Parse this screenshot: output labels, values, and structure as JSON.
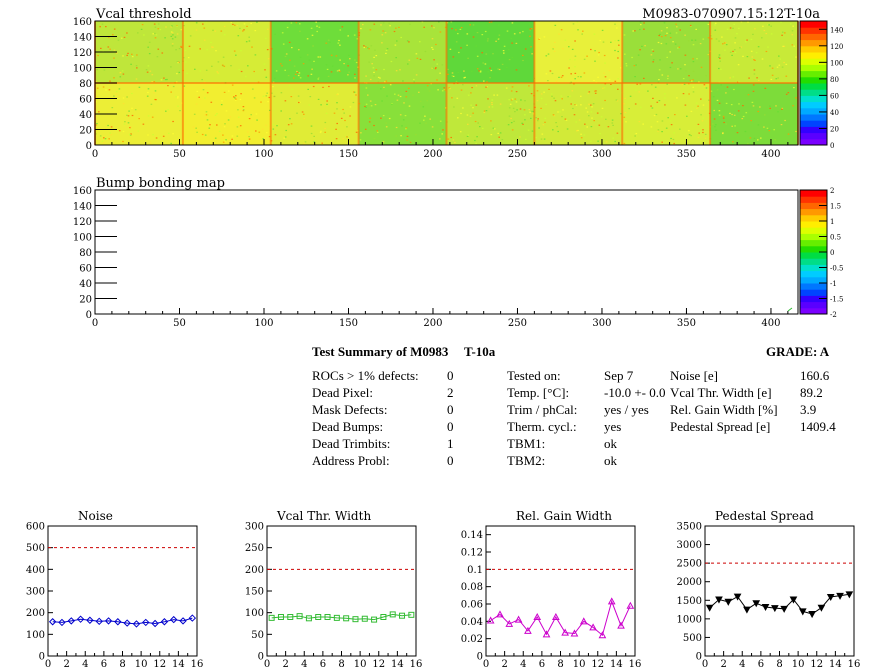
{
  "top_map": {
    "title": "Vcal threshold",
    "id_label": "M0983-070907.15:12T-10a",
    "xticks": [
      "0",
      "50",
      "100",
      "150",
      "200",
      "250",
      "300",
      "350",
      "400"
    ],
    "yticks": [
      "0",
      "20",
      "40",
      "60",
      "80",
      "100",
      "120",
      "140",
      "160"
    ],
    "zticks": [
      "0",
      "20",
      "40",
      "60",
      "80",
      "100",
      "120",
      "140"
    ]
  },
  "bump_map": {
    "title": "Bump bonding map",
    "xticks": [
      "0",
      "50",
      "100",
      "150",
      "200",
      "250",
      "300",
      "350",
      "400"
    ],
    "yticks": [
      "0",
      "20",
      "40",
      "60",
      "80",
      "100",
      "120",
      "140",
      "160"
    ],
    "zticks": [
      "-2",
      "-1.5",
      "-1",
      "-0.5",
      "0",
      "0.5",
      "1",
      "1.5",
      "2"
    ]
  },
  "summary": {
    "title": "Test Summary of M0983",
    "temp_id": "T-10a",
    "grade": "GRADE:  A",
    "left": [
      {
        "label": "ROCs > 1% defects:",
        "value": "0"
      },
      {
        "label": "Dead Pixel:",
        "value": "2"
      },
      {
        "label": "Mask Defects:",
        "value": "0"
      },
      {
        "label": "Dead Bumps:",
        "value": "0"
      },
      {
        "label": "Dead Trimbits:",
        "value": "1"
      },
      {
        "label": "Address Probl:",
        "value": "0"
      }
    ],
    "middle": [
      {
        "label": "Tested on:",
        "value": "Sep 7"
      },
      {
        "label": "Temp. [°C]:",
        "value": "-10.0 +- 0.0"
      },
      {
        "label": "Trim / phCal:",
        "value": "yes / yes"
      },
      {
        "label": "Therm. cycl.:",
        "value": "yes"
      },
      {
        "label": "TBM1:",
        "value": "ok"
      },
      {
        "label": "TBM2:",
        "value": "ok"
      }
    ],
    "right": [
      {
        "label": "Noise [e]",
        "value": "160.6"
      },
      {
        "label": "Vcal Thr. Width [e]",
        "value": "89.2"
      },
      {
        "label": "Rel. Gain Width [%]",
        "value": "3.9"
      },
      {
        "label": "Pedestal Spread [e]",
        "value": "1409.4"
      }
    ]
  },
  "chart_data": [
    {
      "type": "line",
      "title": "Noise",
      "color": "#0000cc",
      "x": [
        0,
        1,
        2,
        3,
        4,
        5,
        6,
        7,
        8,
        9,
        10,
        11,
        12,
        13,
        14,
        15
      ],
      "values": [
        158,
        155,
        162,
        170,
        165,
        160,
        162,
        158,
        152,
        148,
        155,
        150,
        158,
        168,
        162,
        175
      ],
      "ylim": [
        0,
        600
      ],
      "yticks": [
        "0",
        "100",
        "200",
        "300",
        "400",
        "500",
        "600"
      ],
      "xticks": [
        "0",
        "2",
        "4",
        "6",
        "8",
        "10",
        "12",
        "14",
        "16"
      ],
      "threshold": 500
    },
    {
      "type": "line",
      "title": "Vcal Thr. Width",
      "color": "#33bb33",
      "x": [
        0,
        1,
        2,
        3,
        4,
        5,
        6,
        7,
        8,
        9,
        10,
        11,
        12,
        13,
        14,
        15
      ],
      "values": [
        88,
        90,
        90,
        92,
        87,
        90,
        90,
        88,
        87,
        85,
        86,
        84,
        90,
        96,
        93,
        95
      ],
      "ylim": [
        0,
        300
      ],
      "yticks": [
        "0",
        "50",
        "100",
        "150",
        "200",
        "250",
        "300"
      ],
      "xticks": [
        "0",
        "2",
        "4",
        "6",
        "8",
        "10",
        "12",
        "14",
        "16"
      ],
      "threshold": 200
    },
    {
      "type": "line",
      "title": "Rel. Gain Width",
      "color": "#cc00cc",
      "x": [
        0,
        1,
        2,
        3,
        4,
        5,
        6,
        7,
        8,
        9,
        10,
        11,
        12,
        13,
        14,
        15
      ],
      "values": [
        0.041,
        0.048,
        0.037,
        0.042,
        0.029,
        0.045,
        0.025,
        0.045,
        0.027,
        0.026,
        0.04,
        0.033,
        0.024,
        0.063,
        0.035,
        0.058
      ],
      "ylim": [
        0,
        0.15
      ],
      "yticks": [
        "0",
        "0.02",
        "0.04",
        "0.06",
        "0.08",
        "0.1",
        "0.12",
        "0.14"
      ],
      "xticks": [
        "0",
        "2",
        "4",
        "6",
        "8",
        "10",
        "12",
        "14",
        "16"
      ],
      "threshold": 0.1
    },
    {
      "type": "line",
      "title": "Pedestal Spread",
      "color": "#000000",
      "x": [
        0,
        1,
        2,
        3,
        4,
        5,
        6,
        7,
        8,
        9,
        10,
        11,
        12,
        13,
        14,
        15
      ],
      "values": [
        1300,
        1520,
        1460,
        1600,
        1250,
        1420,
        1320,
        1290,
        1270,
        1520,
        1200,
        1130,
        1300,
        1590,
        1620,
        1660
      ],
      "ylim": [
        0,
        3500
      ],
      "yticks": [
        "0",
        "500",
        "1000",
        "1500",
        "2000",
        "2500",
        "3000",
        "3500"
      ],
      "xticks": [
        "0",
        "2",
        "4",
        "6",
        "8",
        "10",
        "12",
        "14",
        "16"
      ],
      "threshold": 2500
    }
  ]
}
